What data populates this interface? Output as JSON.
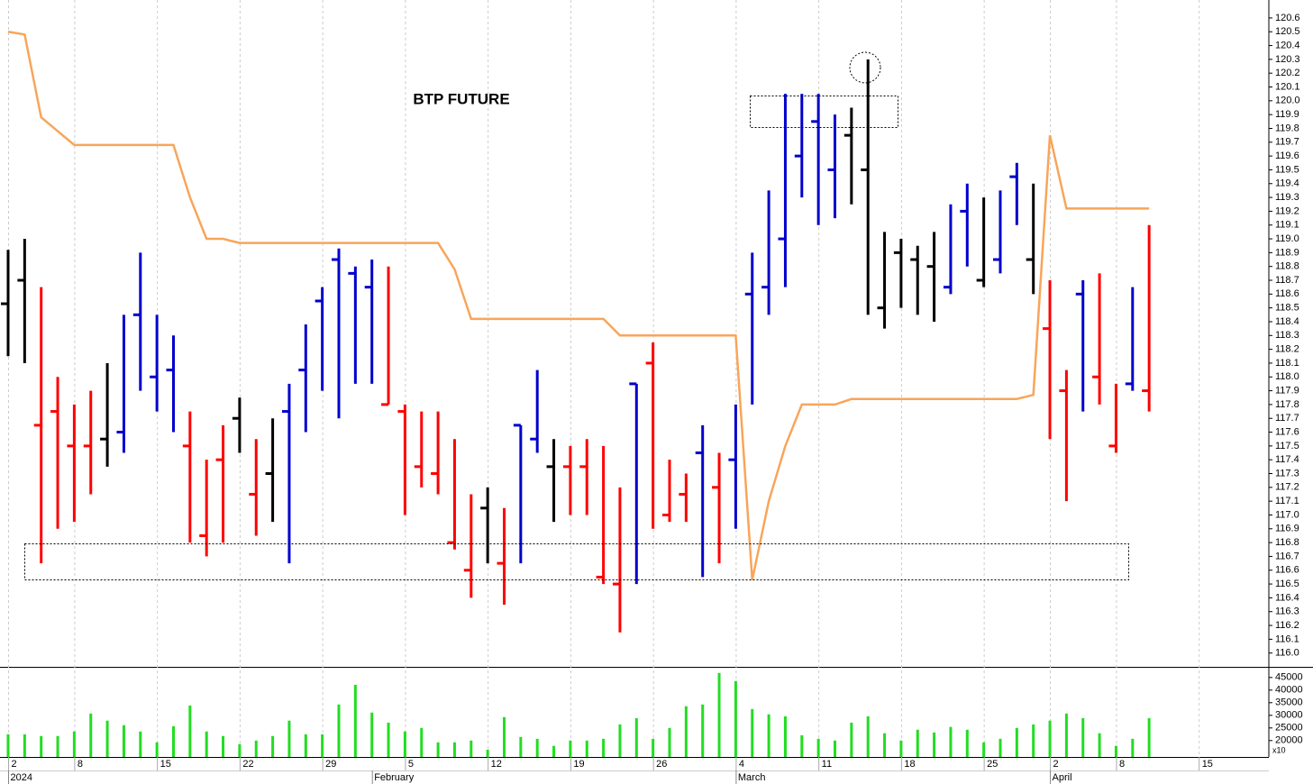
{
  "chart_data": [
    {
      "type": "ohlc",
      "title": "BTP FUTURE",
      "categories": [
        "2",
        null,
        null,
        null,
        "8",
        null,
        null,
        null,
        null,
        "15",
        null,
        null,
        null,
        null,
        "22",
        null,
        null,
        null,
        null,
        "29",
        null,
        null,
        null,
        null,
        "5",
        null,
        null,
        null,
        null,
        "12",
        null,
        null,
        null,
        null,
        "19",
        null,
        null,
        null,
        null,
        "26",
        null,
        null,
        null,
        null,
        "4",
        null,
        null,
        null,
        null,
        "11",
        null,
        null,
        null,
        null,
        "18",
        null,
        null,
        null,
        null,
        "25",
        null,
        null,
        null,
        "2",
        null,
        null,
        null,
        "8",
        null,
        null,
        null,
        null,
        "15",
        null,
        null,
        null,
        null
      ],
      "month_categories": [
        "2024",
        null,
        null,
        null,
        null,
        null,
        null,
        null,
        null,
        null,
        null,
        null,
        null,
        null,
        null,
        null,
        null,
        null,
        null,
        null,
        null,
        null,
        "February",
        null,
        null,
        null,
        null,
        null,
        null,
        null,
        null,
        null,
        null,
        null,
        null,
        null,
        null,
        null,
        null,
        null,
        null,
        null,
        null,
        null,
        "March",
        null,
        null,
        null,
        null,
        null,
        null,
        null,
        null,
        null,
        null,
        null,
        null,
        null,
        null,
        null,
        null,
        null,
        null,
        "April",
        null,
        null,
        null,
        null,
        null,
        null,
        null,
        null,
        null,
        null,
        null,
        null,
        null
      ],
      "high": [
        118.92,
        119.0,
        118.65,
        118.0,
        117.8,
        117.9,
        118.1,
        118.45,
        118.9,
        118.45,
        118.3,
        117.75,
        117.4,
        117.65,
        117.85,
        117.55,
        117.7,
        117.95,
        118.38,
        118.65,
        118.93,
        118.8,
        118.85,
        118.8,
        117.8,
        117.75,
        117.75,
        117.55,
        117.15,
        117.2,
        117.05,
        117.65,
        118.05,
        117.55,
        117.5,
        117.55,
        117.5,
        117.2,
        117.95,
        118.25,
        117.4,
        117.3,
        117.65,
        117.45,
        117.8,
        118.9,
        119.35,
        120.05,
        120.05,
        120.05,
        119.9,
        119.95,
        120.3,
        119.05,
        119.0,
        118.95,
        119.05,
        119.25,
        119.4,
        119.3,
        119.35,
        119.55,
        119.4,
        118.7,
        118.05,
        118.7,
        118.75,
        117.95,
        118.65,
        119.1,
        null,
        null,
        null,
        null,
        null,
        null,
        null
      ],
      "low": [
        118.15,
        118.1,
        116.65,
        116.9,
        116.95,
        117.15,
        117.35,
        117.45,
        117.9,
        117.75,
        117.6,
        116.8,
        116.7,
        116.8,
        117.45,
        116.85,
        116.95,
        116.65,
        117.6,
        117.9,
        117.7,
        117.95,
        117.95,
        117.8,
        117.0,
        117.2,
        117.15,
        116.75,
        116.4,
        116.65,
        116.35,
        116.65,
        117.45,
        116.95,
        117.0,
        117.0,
        116.5,
        116.15,
        116.5,
        116.9,
        116.95,
        116.95,
        116.55,
        116.65,
        116.9,
        117.8,
        118.45,
        118.65,
        119.3,
        119.1,
        119.15,
        119.25,
        118.45,
        118.35,
        118.5,
        118.45,
        118.4,
        118.6,
        118.8,
        118.65,
        118.75,
        119.1,
        118.6,
        117.55,
        117.1,
        117.75,
        117.8,
        117.45,
        117.9,
        117.75,
        null,
        null,
        null,
        null,
        null,
        null,
        null
      ],
      "close": [
        118.53,
        118.7,
        117.65,
        117.75,
        117.5,
        117.5,
        117.55,
        117.6,
        118.45,
        118.0,
        118.05,
        117.5,
        116.85,
        117.4,
        117.7,
        117.15,
        117.3,
        117.75,
        118.05,
        118.55,
        118.85,
        118.75,
        118.65,
        117.8,
        117.75,
        117.35,
        117.3,
        116.8,
        116.6,
        117.05,
        116.65,
        117.65,
        117.55,
        117.35,
        117.35,
        117.35,
        116.55,
        116.5,
        117.95,
        118.1,
        117.0,
        117.15,
        117.45,
        117.2,
        117.4,
        118.6,
        118.65,
        119.0,
        119.6,
        119.85,
        119.5,
        119.75,
        119.5,
        118.5,
        118.9,
        118.85,
        118.8,
        118.65,
        119.2,
        118.7,
        118.85,
        119.45,
        118.85,
        118.35,
        117.9,
        118.6,
        118.0,
        117.5,
        117.95,
        117.9,
        null,
        null,
        null,
        null,
        null,
        null,
        null
      ],
      "bar_colors": [
        "#000000",
        "#000000",
        "#ff0000",
        "#ff0000",
        "#ff0000",
        "#ff0000",
        "#000000",
        "#0000cc",
        "#0000cc",
        "#0000cc",
        "#0000cc",
        "#ff0000",
        "#ff0000",
        "#ff0000",
        "#000000",
        "#ff0000",
        "#000000",
        "#0000cc",
        "#0000cc",
        "#0000cc",
        "#0000cc",
        "#0000cc",
        "#0000cc",
        "#ff0000",
        "#ff0000",
        "#ff0000",
        "#ff0000",
        "#ff0000",
        "#ff0000",
        "#000000",
        "#ff0000",
        "#0000cc",
        "#0000cc",
        "#000000",
        "#ff0000",
        "#ff0000",
        "#ff0000",
        "#ff0000",
        "#0000cc",
        "#ff0000",
        "#ff0000",
        "#ff0000",
        "#0000cc",
        "#ff0000",
        "#0000cc",
        "#0000cc",
        "#0000cc",
        "#0000cc",
        "#0000cc",
        "#0000cc",
        "#0000cc",
        "#000000",
        "#000000",
        "#000000",
        "#000000",
        "#000000",
        "#000000",
        "#0000cc",
        "#0000cc",
        "#000000",
        "#0000cc",
        "#0000cc",
        "#000000",
        "#ff0000",
        "#ff0000",
        "#0000cc",
        "#ff0000",
        "#ff0000",
        "#0000cc",
        "#ff0000",
        null,
        null,
        null,
        null,
        null,
        null,
        null
      ],
      "line": {
        "color": "#f8a55a",
        "values": [
          120.5,
          120.48,
          119.88,
          119.78,
          119.68,
          119.68,
          119.68,
          119.68,
          119.68,
          119.68,
          119.68,
          119.3,
          119.0,
          119.0,
          118.97,
          118.97,
          118.97,
          118.97,
          118.97,
          118.97,
          118.97,
          118.97,
          118.97,
          118.97,
          118.97,
          118.97,
          118.97,
          118.78,
          118.42,
          118.42,
          118.42,
          118.42,
          118.42,
          118.42,
          118.42,
          118.42,
          118.42,
          118.3,
          118.3,
          118.3,
          118.3,
          118.3,
          118.3,
          118.3,
          118.3,
          116.53,
          117.1,
          117.5,
          117.8,
          117.8,
          117.8,
          117.84,
          117.84,
          117.84,
          117.84,
          117.84,
          117.84,
          117.84,
          117.84,
          117.84,
          117.84,
          117.84,
          117.87,
          119.75,
          119.22,
          119.22,
          119.22,
          119.22,
          119.22,
          119.22,
          null,
          null,
          null,
          null,
          null,
          null,
          null
        ]
      },
      "ylim": [
        115.9,
        120.73
      ],
      "yticks": [
        {
          "value": 116.0,
          "label": "116.0"
        },
        116.1,
        116.2,
        116.3,
        116.4,
        116.5,
        116.6,
        116.7,
        116.8,
        116.9,
        {
          "value": 117.0,
          "label": "117.0"
        },
        117.1,
        117.2,
        117.3,
        117.4,
        117.5,
        117.6,
        117.7,
        117.8,
        117.9,
        {
          "value": 118.0,
          "label": "118.0"
        },
        118.1,
        118.2,
        118.3,
        118.4,
        118.5,
        118.6,
        118.7,
        118.8,
        118.9,
        {
          "value": 119.0,
          "label": "119.0"
        },
        119.1,
        119.2,
        119.3,
        119.4,
        119.5,
        119.6,
        119.7,
        119.8,
        119.9,
        {
          "value": 120.0,
          "label": "120.0"
        },
        120.1,
        120.2,
        120.3,
        120.4,
        120.5,
        120.6
      ],
      "grid": true
    },
    {
      "type": "bar",
      "color": "#22dd22",
      "scale_label": "x10",
      "values": [
        22500,
        22500,
        21800,
        21800,
        23600,
        30700,
        27900,
        26100,
        23600,
        19300,
        25700,
        33900,
        23600,
        21800,
        18600,
        20000,
        21800,
        27900,
        22500,
        22500,
        34300,
        42100,
        31100,
        27100,
        23600,
        25000,
        19300,
        19300,
        20000,
        16400,
        29300,
        21400,
        20700,
        17900,
        20000,
        20000,
        20700,
        26400,
        28900,
        20700,
        25000,
        33600,
        34300,
        46800,
        43600,
        32500,
        30400,
        29600,
        22100,
        20700,
        20000,
        27100,
        29600,
        22900,
        20000,
        24300,
        23200,
        25400,
        24300,
        19300,
        20700,
        25000,
        26400,
        27900,
        30700,
        28900,
        22900,
        17900,
        20700,
        28900,
        null,
        null,
        null,
        null,
        null,
        null,
        null
      ],
      "ylim": [
        13500,
        48500
      ],
      "yticks": [
        20000,
        25000,
        30000,
        35000,
        40000,
        45000
      ]
    }
  ]
}
